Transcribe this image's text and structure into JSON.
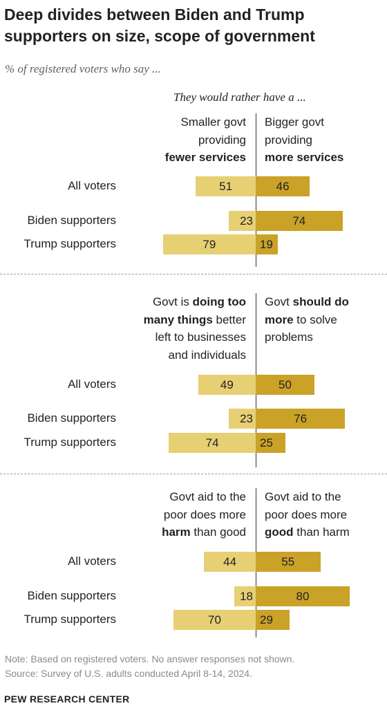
{
  "title": "Deep divides between Biden and Trump supporters on size, scope of government",
  "subtitle": "% of registered voters who say ...",
  "rather_label": "They would rather have a ...",
  "colors": {
    "left_bar": "#e7cf74",
    "right_bar": "#c9a227"
  },
  "row_labels": [
    "All voters",
    "Biden supporters",
    "Trump supporters"
  ],
  "chart_data": [
    {
      "type": "bar",
      "left_header": [
        [
          {
            "text": "Smaller govt",
            "bold": false
          }
        ],
        [
          {
            "text": "providing",
            "bold": false
          }
        ],
        [
          {
            "text": "fewer services",
            "bold": true
          }
        ]
      ],
      "right_header": [
        [
          {
            "text": "Bigger govt",
            "bold": false
          }
        ],
        [
          {
            "text": "providing",
            "bold": false
          }
        ],
        [
          {
            "text": "more services",
            "bold": true
          }
        ]
      ],
      "categories": [
        "All voters",
        "Biden supporters",
        "Trump supporters"
      ],
      "left_values": [
        51,
        23,
        79
      ],
      "right_values": [
        46,
        74,
        19
      ]
    },
    {
      "type": "bar",
      "left_header": [
        [
          {
            "text": "Govt is ",
            "bold": false
          },
          {
            "text": "doing too",
            "bold": true
          }
        ],
        [
          {
            "text": "many things",
            "bold": true
          },
          {
            "text": " better",
            "bold": false
          }
        ],
        [
          {
            "text": "left to businesses",
            "bold": false
          }
        ],
        [
          {
            "text": "and individuals",
            "bold": false
          }
        ]
      ],
      "right_header": [
        [
          {
            "text": "Govt ",
            "bold": false
          },
          {
            "text": "should do",
            "bold": true
          }
        ],
        [
          {
            "text": "more",
            "bold": true
          },
          {
            "text": " to solve",
            "bold": false
          }
        ],
        [
          {
            "text": "problems",
            "bold": false
          }
        ]
      ],
      "categories": [
        "All voters",
        "Biden supporters",
        "Trump supporters"
      ],
      "left_values": [
        49,
        23,
        74
      ],
      "right_values": [
        50,
        76,
        25
      ]
    },
    {
      "type": "bar",
      "left_header": [
        [
          {
            "text": "Govt aid to the",
            "bold": false
          }
        ],
        [
          {
            "text": "poor does more",
            "bold": false
          }
        ],
        [
          {
            "text": "harm",
            "bold": true
          },
          {
            "text": " than good",
            "bold": false
          }
        ]
      ],
      "right_header": [
        [
          {
            "text": "Govt aid to the",
            "bold": false
          }
        ],
        [
          {
            "text": "poor does more",
            "bold": false
          }
        ],
        [
          {
            "text": "good",
            "bold": true
          },
          {
            "text": " than harm",
            "bold": false
          }
        ]
      ],
      "categories": [
        "All voters",
        "Biden supporters",
        "Trump supporters"
      ],
      "left_values": [
        44,
        18,
        70
      ],
      "right_values": [
        55,
        80,
        29
      ]
    }
  ],
  "note": "Note: Based on registered voters. No answer responses not shown.",
  "source": "Source: Survey of U.S. adults conducted April 8-14, 2024.",
  "brand": "PEW RESEARCH CENTER"
}
